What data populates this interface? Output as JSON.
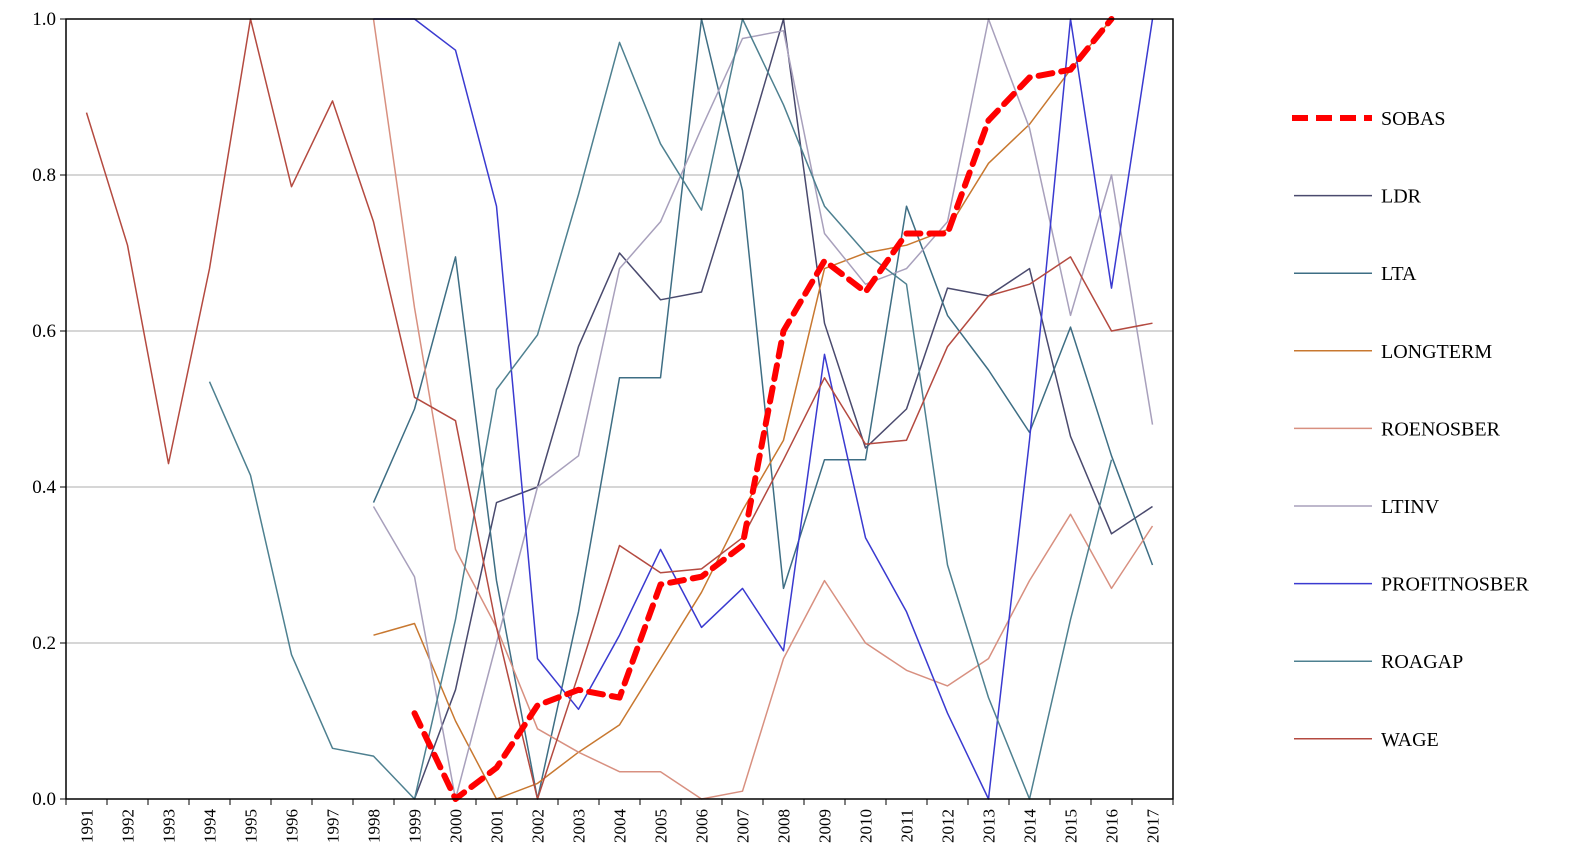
{
  "chart_data": {
    "type": "line",
    "title": "",
    "xlabel": "",
    "ylabel": "",
    "ylim": [
      0,
      1
    ],
    "y_ticks": [
      "0.0",
      "0.2",
      "0.4",
      "0.6",
      "0.8",
      "1.0"
    ],
    "grid": "horizontal",
    "legend_position": "right",
    "categories": [
      "1991",
      "1992",
      "1993",
      "1994",
      "1995",
      "1996",
      "1997",
      "1998",
      "1999",
      "2000",
      "2001",
      "2002",
      "2003",
      "2004",
      "2005",
      "2006",
      "2007",
      "2008",
      "2009",
      "2010",
      "2011",
      "2012",
      "2013",
      "2014",
      "2015",
      "2016",
      "2017"
    ],
    "series": [
      {
        "name": "SOBAS",
        "color": "#ff0000",
        "dashed": true,
        "values": [
          null,
          null,
          null,
          null,
          null,
          null,
          null,
          null,
          0.11,
          0.0,
          0.04,
          0.12,
          0.14,
          0.13,
          0.275,
          0.285,
          0.325,
          0.6,
          0.69,
          0.65,
          0.725,
          0.725,
          0.87,
          0.925,
          0.935,
          1.0,
          null
        ]
      },
      {
        "name": "LDR",
        "color": "#4a4a6e",
        "values": [
          null,
          null,
          null,
          null,
          null,
          null,
          null,
          null,
          0.0,
          0.14,
          0.38,
          0.4,
          0.58,
          0.7,
          0.64,
          0.65,
          0.82,
          1.0,
          0.61,
          0.45,
          0.5,
          0.655,
          0.645,
          0.68,
          0.465,
          0.34,
          0.375
        ]
      },
      {
        "name": "LTA",
        "color": "#3e6e84",
        "values": [
          null,
          null,
          null,
          null,
          null,
          null,
          null,
          0.38,
          0.5,
          0.695,
          0.28,
          0.0,
          0.24,
          0.54,
          0.54,
          1.0,
          0.78,
          0.27,
          0.435,
          0.435,
          0.76,
          0.62,
          0.55,
          0.47,
          0.605,
          0.44,
          0.3
        ]
      },
      {
        "name": "LONGTERM",
        "color": "#c87830",
        "values": [
          null,
          null,
          null,
          null,
          null,
          null,
          null,
          0.21,
          0.225,
          0.1,
          0.0,
          0.02,
          0.06,
          0.095,
          0.18,
          0.265,
          0.37,
          0.46,
          0.68,
          0.7,
          0.71,
          0.73,
          0.815,
          0.865,
          0.935,
          1.0,
          null
        ]
      },
      {
        "name": "ROENOSBER",
        "color": "#d89080",
        "values": [
          null,
          null,
          null,
          null,
          null,
          null,
          null,
          1.0,
          0.63,
          0.32,
          0.22,
          0.09,
          0.06,
          0.035,
          0.035,
          0.0,
          0.01,
          0.18,
          0.28,
          0.2,
          0.165,
          0.145,
          0.18,
          0.28,
          0.365,
          0.27,
          0.35
        ]
      },
      {
        "name": "LTINV",
        "color": "#a8a0bc",
        "values": [
          null,
          null,
          null,
          null,
          null,
          null,
          null,
          0.375,
          0.285,
          0.0,
          0.2,
          0.4,
          0.44,
          0.68,
          0.74,
          0.86,
          0.975,
          0.985,
          0.725,
          0.66,
          0.68,
          0.74,
          1.0,
          0.86,
          0.62,
          0.8,
          0.48
        ]
      },
      {
        "name": "PROFITNOSBER",
        "color": "#3a3ad0",
        "values": [
          null,
          null,
          null,
          null,
          null,
          null,
          null,
          1.0,
          1.0,
          0.96,
          0.76,
          0.18,
          0.115,
          0.21,
          0.32,
          0.22,
          0.27,
          0.19,
          0.57,
          0.335,
          0.24,
          0.11,
          0.0,
          0.46,
          1.0,
          0.655,
          1.0
        ]
      },
      {
        "name": "ROAGAP",
        "color": "#4e8090",
        "values": [
          null,
          null,
          null,
          0.535,
          0.415,
          0.185,
          0.065,
          0.055,
          0.0,
          0.23,
          0.525,
          0.595,
          0.775,
          0.97,
          0.84,
          0.755,
          1.0,
          0.89,
          0.76,
          0.7,
          0.66,
          0.3,
          0.13,
          0.0,
          0.23,
          0.435,
          null
        ]
      },
      {
        "name": "WAGE",
        "color": "#b44a40",
        "values": [
          0.88,
          0.71,
          0.43,
          0.68,
          1.0,
          0.785,
          0.895,
          0.74,
          0.515,
          0.485,
          0.22,
          0.0,
          0.16,
          0.325,
          0.29,
          0.295,
          0.335,
          0.435,
          0.54,
          0.455,
          0.46,
          0.58,
          0.645,
          0.66,
          0.695,
          0.6,
          0.61
        ]
      }
    ]
  }
}
